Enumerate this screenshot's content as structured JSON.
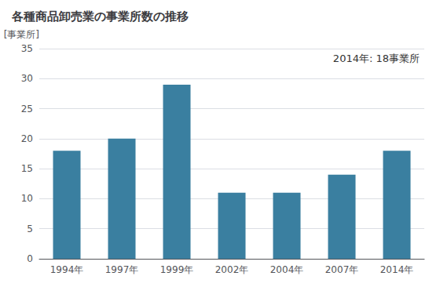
{
  "chart_data": {
    "type": "bar",
    "title": "各種商品卸売業の事業所数の推移",
    "ylabel": "[事業所]",
    "annotation": "2014年: 18事業所",
    "categories": [
      "1994年",
      "1997年",
      "1999年",
      "2002年",
      "2004年",
      "2007年",
      "2014年"
    ],
    "values": [
      18,
      20,
      29,
      11,
      11,
      14,
      18
    ],
    "color": "#3a7fa0",
    "ylim": [
      0,
      35
    ],
    "yticks": [
      0,
      5,
      10,
      15,
      20,
      25,
      30,
      35
    ],
    "grid": true
  }
}
